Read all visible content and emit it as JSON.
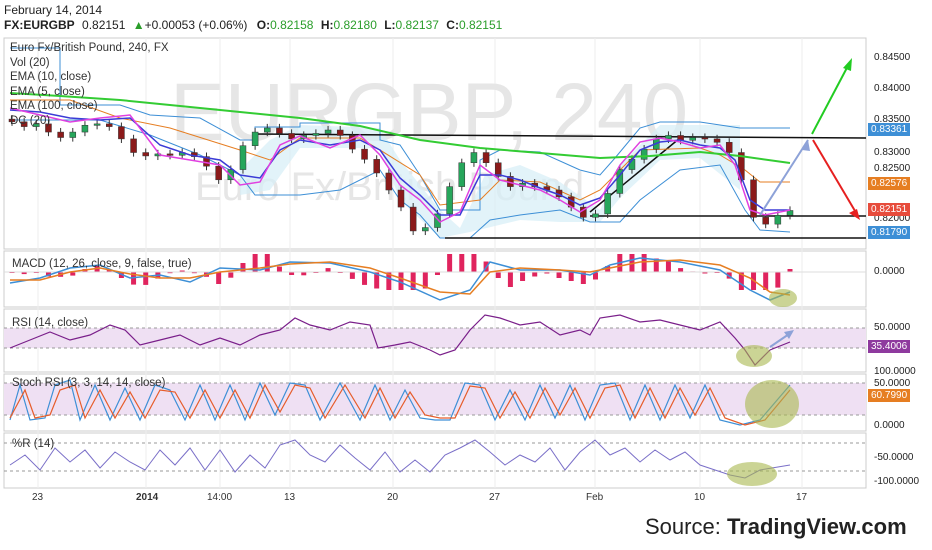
{
  "header": {
    "date": "February 14, 2014",
    "symbol": "FX:EURGBP",
    "price": "0.82151",
    "change": "+0.00053 (+0.06%)",
    "change_arrow": "▲",
    "o_label": "O:",
    "o_value": "0.82158",
    "h_label": "H:",
    "h_value": "0.82180",
    "l_label": "L:",
    "l_value": "0.82137",
    "c_label": "C:",
    "c_value": "0.82151"
  },
  "main_pane": {
    "watermark_symbol": "EURGBP, 240",
    "watermark_name": "Euro Fx/British Pound",
    "legend": [
      "Euro Fx/British Pound, 240, FX",
      "Vol (20)",
      "EMA (10, close)",
      "EMA (5, close)",
      "EMA (100, close)",
      "DC (20)"
    ],
    "price_labels": [
      "0.84500",
      "0.84000",
      "0.83500",
      "0.83000",
      "0.82500",
      "0.82000"
    ],
    "badges": [
      {
        "text": "0.83361",
        "color": "#3d8fd6"
      },
      {
        "text": "0.82576",
        "color": "#e67e22"
      },
      {
        "text": "0.82151",
        "color": "#e74c3c"
      },
      {
        "text": "0.81790",
        "color": "#3d8fd6"
      }
    ]
  },
  "macd_pane": {
    "legend": "MACD (12, 26, close, 9, false, true)",
    "labels": [
      "0.0000"
    ]
  },
  "rsi_pane": {
    "legend": "RSI (14, close)",
    "labels": [
      "50.0000"
    ],
    "badge": {
      "text": "35.4006",
      "color": "#8e3a9e"
    }
  },
  "stoch_pane": {
    "legend": "Stoch RSI (3, 3, 14, 14, close)",
    "labels": [
      "100.0000",
      "50.0000",
      "0.0000"
    ],
    "badge": {
      "text": "60.7990",
      "color": "#e67e22"
    }
  },
  "wr_pane": {
    "legend": "%R (14)",
    "labels": [
      "-50.0000",
      "-100.0000"
    ]
  },
  "x_axis": {
    "ticks": [
      "23",
      "2014",
      "14:00",
      "13",
      "20",
      "27",
      "Feb",
      "10",
      "17"
    ]
  },
  "source": {
    "prefix": "Source: ",
    "brand": "TradingView.com"
  },
  "chart_data": {
    "type": "candlestick",
    "title": "Euro Fx/British Pound, 240, FX",
    "x": [
      "23",
      "2014",
      "14:00",
      "13",
      "20",
      "27",
      "Feb",
      "10",
      "17"
    ],
    "ylim": [
      0.816,
      0.8465
    ],
    "close_series": [
      0.8345,
      0.8338,
      0.8342,
      0.833,
      0.8322,
      0.833,
      0.834,
      0.8342,
      0.8338,
      0.832,
      0.83,
      0.8295,
      0.8298,
      0.8296,
      0.83,
      0.8294,
      0.828,
      0.826,
      0.8275,
      0.831,
      0.833,
      0.8336,
      0.8328,
      0.832,
      0.8325,
      0.8328,
      0.8333,
      0.8325,
      0.8305,
      0.829,
      0.827,
      0.8245,
      0.822,
      0.8185,
      0.819,
      0.821,
      0.825,
      0.8285,
      0.83,
      0.8285,
      0.8265,
      0.825,
      0.8255,
      0.825,
      0.8245,
      0.8235,
      0.822,
      0.8205,
      0.821,
      0.824,
      0.8275,
      0.829,
      0.8305,
      0.832,
      0.8325,
      0.8318,
      0.8322,
      0.832,
      0.8315,
      0.83,
      0.826,
      0.8205,
      0.8195,
      0.8208,
      0.8215
    ],
    "series": [
      {
        "name": "EMA (10, close)",
        "color": "#3b3bd6"
      },
      {
        "name": "EMA (5, close)",
        "color": "#e040e0"
      },
      {
        "name": "EMA (100, close)",
        "color": "#33cc33"
      },
      {
        "name": "DC (20)",
        "color": "#3d8fd6"
      }
    ],
    "horizontal_lines": [
      0.832,
      0.8205,
      0.8178
    ],
    "last_price": 0.82151
  }
}
